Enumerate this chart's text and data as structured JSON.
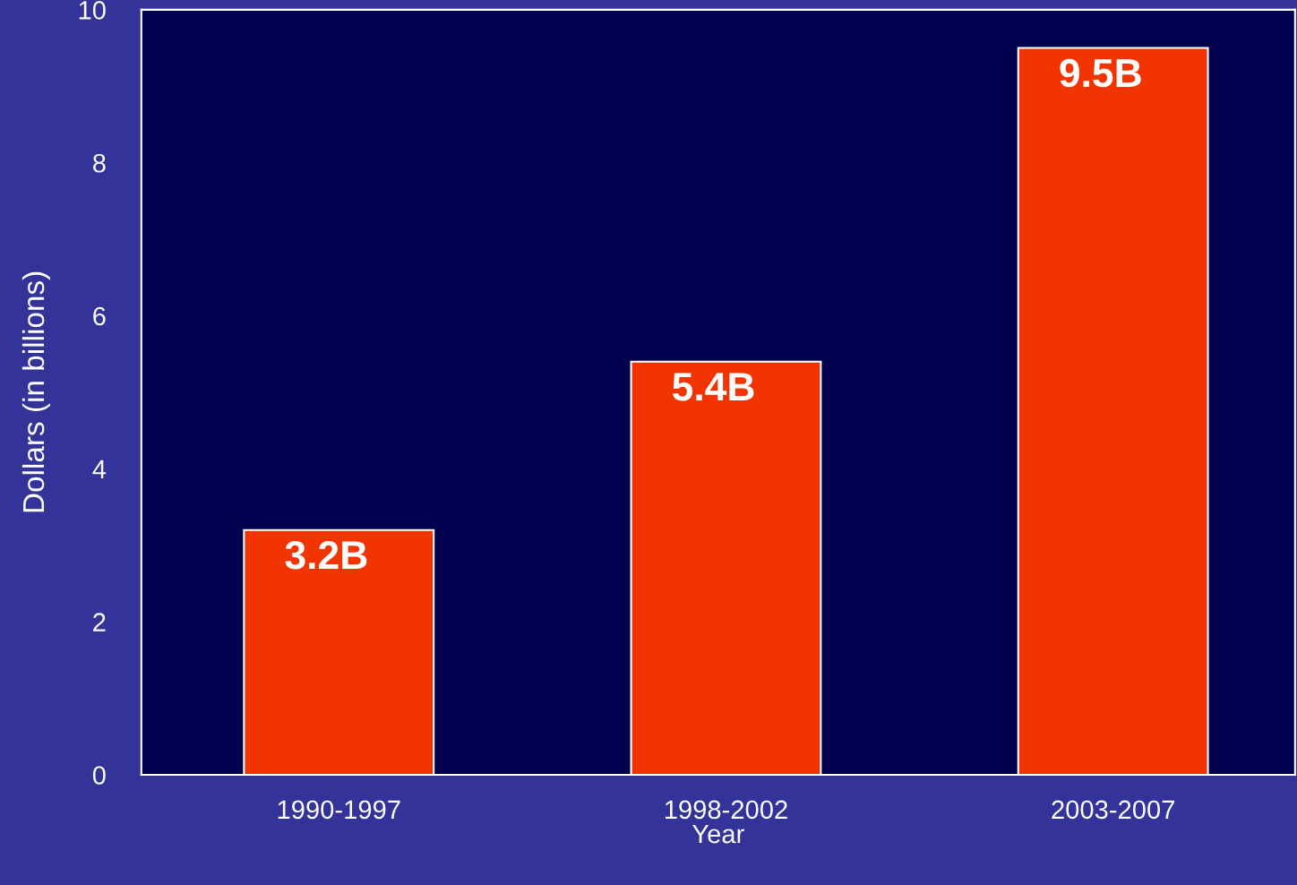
{
  "chart_data": {
    "type": "bar",
    "categories": [
      "1990-1997",
      "1998-2002",
      "2003-2007"
    ],
    "values": [
      3.2,
      5.4,
      9.5
    ],
    "value_labels": [
      "3.2B",
      "5.4B",
      "9.5B"
    ],
    "color": "#f23500",
    "xlabel": "Year",
    "ylabel": "Dollars (in billions)",
    "ylim": [
      0,
      10
    ],
    "yticks": [
      0,
      2,
      4,
      6,
      8,
      10
    ],
    "grid": false,
    "legend": false
  }
}
